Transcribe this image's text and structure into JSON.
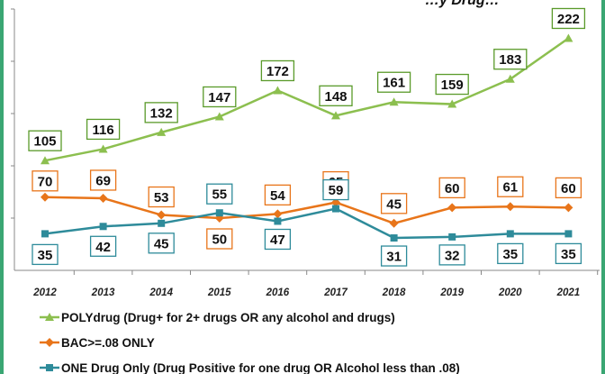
{
  "chart_data": {
    "type": "line",
    "title": "…y Drug…",
    "categories": [
      "2012",
      "2013",
      "2014",
      "2015",
      "2016",
      "2017",
      "2018",
      "2019",
      "2020",
      "2021"
    ],
    "series": [
      {
        "name": "POLYdrug (Drug+ for 2+ drugs OR any alcohol and drugs)",
        "values": [
          105,
          116,
          132,
          147,
          172,
          148,
          161,
          159,
          183,
          222
        ],
        "color": "#8cbf4f",
        "marker": "triangle",
        "label_border": "#5a9a2a"
      },
      {
        "name": "BAC>=.08 ONLY",
        "values": [
          70,
          69,
          53,
          50,
          54,
          65,
          45,
          60,
          61,
          60
        ],
        "color": "#e8751a",
        "marker": "diamond",
        "label_border": "#e8751a"
      },
      {
        "name": "ONE Drug Only (Drug Positive for one drug OR Alcohol less than .08)",
        "values": [
          35,
          42,
          45,
          55,
          47,
          59,
          31,
          32,
          35,
          35
        ],
        "color": "#2e8b9a",
        "marker": "square",
        "label_border": "#2e8b9a"
      }
    ],
    "ylim": [
      0,
      250
    ],
    "grid": false,
    "legend_position": "bottom"
  }
}
